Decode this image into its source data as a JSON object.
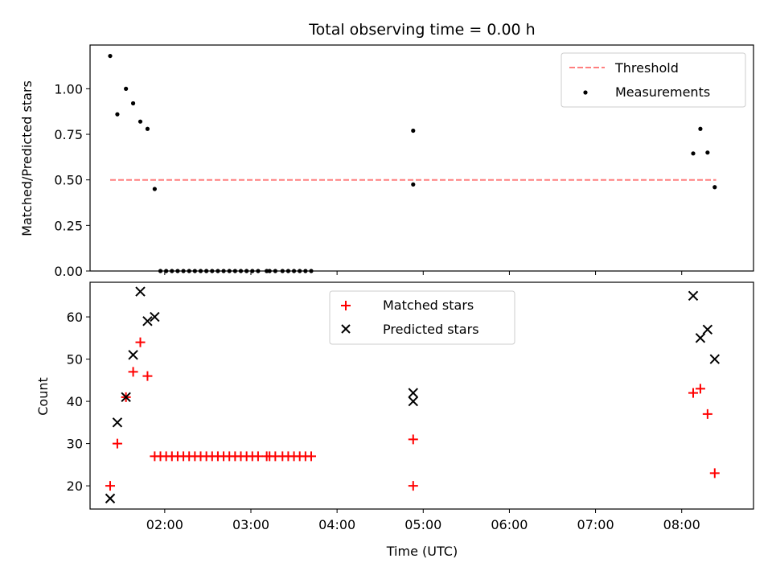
{
  "chart_data": [
    {
      "type": "scatter",
      "title": "Total observing time = 0.00 h",
      "xlabel": "",
      "ylabel": "Matched/Predicted stars",
      "xlim": [
        "01:08",
        "08:50"
      ],
      "ylim": [
        0,
        1.24
      ],
      "yticks": [
        "0.00",
        "0.25",
        "0.50",
        "0.75",
        "1.00"
      ],
      "legend_position": "top-right",
      "series": [
        {
          "name": "Threshold",
          "style": "dashed-line",
          "color": "#ff7f7f",
          "x": [
            "01:22",
            "08:24"
          ],
          "y": [
            0.5,
            0.5
          ]
        },
        {
          "name": "Measurements",
          "style": "dots",
          "color": "#000000",
          "x": [
            "01:22",
            "01:27",
            "01:33",
            "01:38",
            "01:43",
            "01:48",
            "01:53",
            "01:57",
            "02:01",
            "02:05",
            "02:09",
            "02:13",
            "02:17",
            "02:21",
            "02:25",
            "02:29",
            "02:33",
            "02:37",
            "02:41",
            "02:45",
            "02:49",
            "02:53",
            "02:57",
            "03:01",
            "03:05",
            "03:11",
            "03:13",
            "03:17",
            "03:22",
            "03:26",
            "03:30",
            "03:34",
            "03:38",
            "03:42",
            "04:53",
            "04:53",
            "08:08",
            "08:13",
            "08:18",
            "08:23"
          ],
          "y": [
            1.18,
            0.86,
            1.0,
            0.92,
            0.82,
            0.78,
            0.45,
            0.0,
            0.0,
            0.0,
            0.0,
            0.0,
            0.0,
            0.0,
            0.0,
            0.0,
            0.0,
            0.0,
            0.0,
            0.0,
            0.0,
            0.0,
            0.0,
            0.0,
            0.0,
            0.0,
            0.0,
            0.0,
            0.0,
            0.0,
            0.0,
            0.0,
            0.0,
            0.0,
            0.77,
            0.475,
            0.645,
            0.78,
            0.65,
            0.46
          ]
        }
      ]
    },
    {
      "type": "scatter",
      "title": "",
      "xlabel": "Time (UTC)",
      "ylabel": "Count",
      "xlim": [
        "01:08",
        "08:50"
      ],
      "ylim": [
        14.5,
        68.2
      ],
      "xticks": [
        "02:00",
        "03:00",
        "04:00",
        "05:00",
        "06:00",
        "07:00",
        "08:00"
      ],
      "yticks": [
        "20",
        "30",
        "40",
        "50",
        "60"
      ],
      "legend_position": "top-center",
      "series": [
        {
          "name": "Matched stars",
          "marker": "+",
          "color": "#ff0000",
          "x": [
            "01:22",
            "01:27",
            "01:33",
            "01:38",
            "01:43",
            "01:48",
            "01:53",
            "01:57",
            "02:01",
            "02:05",
            "02:09",
            "02:13",
            "02:17",
            "02:21",
            "02:25",
            "02:29",
            "02:33",
            "02:37",
            "02:41",
            "02:45",
            "02:49",
            "02:53",
            "02:57",
            "03:01",
            "03:05",
            "03:11",
            "03:13",
            "03:17",
            "03:22",
            "03:26",
            "03:30",
            "03:34",
            "03:38",
            "03:42",
            "04:53",
            "04:53",
            "08:08",
            "08:13",
            "08:18",
            "08:23"
          ],
          "y": [
            20,
            30,
            41,
            47,
            54,
            46,
            27,
            27,
            27,
            27,
            27,
            27,
            27,
            27,
            27,
            27,
            27,
            27,
            27,
            27,
            27,
            27,
            27,
            27,
            27,
            27,
            27,
            27,
            27,
            27,
            27,
            27,
            27,
            27,
            31,
            20,
            42,
            43,
            37,
            23
          ]
        },
        {
          "name": "Predicted stars",
          "marker": "x",
          "color": "#000000",
          "x": [
            "01:22",
            "01:27",
            "01:33",
            "01:38",
            "01:43",
            "01:48",
            "01:53",
            "04:53",
            "04:53",
            "08:08",
            "08:13",
            "08:18",
            "08:23"
          ],
          "y": [
            17,
            35,
            41,
            51,
            66,
            59,
            60,
            42,
            40,
            65,
            55,
            57,
            50
          ]
        }
      ]
    }
  ]
}
